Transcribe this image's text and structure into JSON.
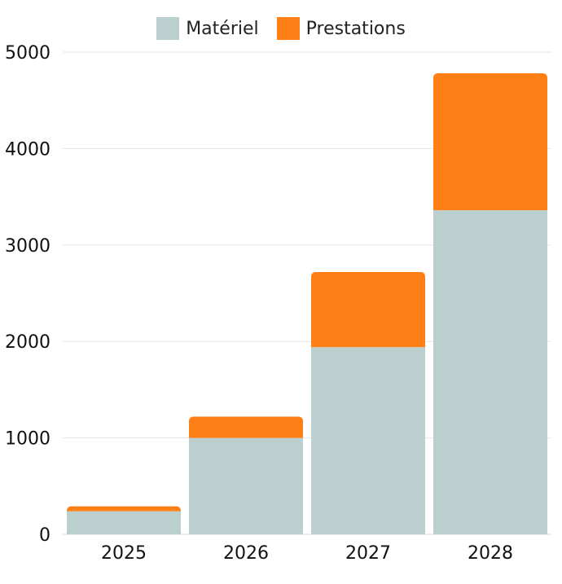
{
  "chart_data": {
    "type": "bar",
    "stacked": true,
    "categories": [
      "2025",
      "2026",
      "2027",
      "2028"
    ],
    "series": [
      {
        "name": "Matériel",
        "color": "#bccfcf",
        "values": [
          240,
          1000,
          1940,
          3360
        ]
      },
      {
        "name": "Prestations",
        "color": "#ff7f17",
        "values": [
          50,
          220,
          780,
          1420
        ]
      }
    ],
    "ylim": [
      0,
      5000
    ],
    "yticks": [
      0,
      1000,
      2000,
      3000,
      4000,
      5000
    ],
    "ytick_labels": [
      "0",
      "1000",
      "2000",
      "3000",
      "4000",
      "5000"
    ],
    "grid": true,
    "legend_position": "top-center",
    "title": "",
    "xlabel": "",
    "ylabel": ""
  }
}
